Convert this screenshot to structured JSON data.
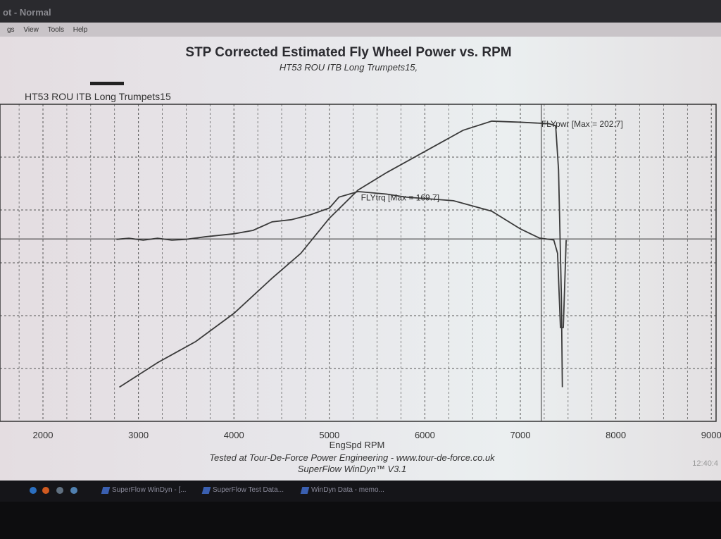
{
  "window": {
    "title": "ot - Normal",
    "menu": [
      "gs",
      "View",
      "Tools",
      "Help"
    ]
  },
  "chart_data": {
    "type": "line",
    "title": "STP Corrected Estimated Fly Wheel Power vs. RPM",
    "subtitle": "HT53 ROU ITB Long Trumpets15,",
    "legend": "HT53 ROU ITB Long Trumpets15",
    "legend_placement": "top-left",
    "xlabel": "EngSpd RPM",
    "ylabel": "",
    "xlim": [
      1550,
      9050
    ],
    "ylim": [
      62,
      210.6
    ],
    "xticks": [
      2000,
      3000,
      4000,
      5000,
      6000,
      7000,
      8000,
      9000
    ],
    "grid": true,
    "cursor_rpm": 7220,
    "series": [
      {
        "name": "FLYpwr",
        "annotation": "FLYpwr [Max = 202.7]",
        "annotation_at": [
          7220,
          200
        ],
        "x": [
          2800,
          3200,
          3600,
          4000,
          4400,
          4700,
          5000,
          5300,
          5600,
          6000,
          6400,
          6700,
          7000,
          7300,
          7370,
          7400,
          7430,
          7440
        ],
        "y": [
          78,
          89.5,
          99.4,
          112.6,
          129.1,
          140.7,
          157.2,
          170.4,
          178.6,
          188.5,
          198.4,
          202.7,
          202.2,
          201.5,
          200.5,
          180,
          120,
          78
        ]
      },
      {
        "name": "FLYtrq",
        "annotation": "FLYtrq [Max = 169.7]",
        "annotation_at": [
          5330,
          165.5
        ],
        "x": [
          2770,
          2900,
          3050,
          3200,
          3350,
          3500,
          3700,
          4000,
          4200,
          4400,
          4600,
          4800,
          5000,
          5100,
          5300,
          5600,
          5800,
          6300,
          6700,
          7000,
          7200,
          7350,
          7390,
          7420,
          7450,
          7480
        ],
        "y": [
          147.3,
          147.8,
          146.9,
          147.8,
          146.9,
          147.3,
          148.5,
          149.9,
          151.5,
          155.5,
          156.5,
          158.8,
          162,
          167.1,
          169.7,
          168.5,
          167.1,
          165.4,
          160.5,
          152.2,
          147.9,
          147,
          140.7,
          106,
          106,
          147
        ]
      }
    ],
    "colors": {
      "line": "#3a3a3a",
      "grid": "#555555"
    }
  },
  "footer": {
    "line1": "Tested at Tour-De-Force Power Engineering - www.tour-de-force.co.uk",
    "line2": "SuperFlow WinDyn™ V3.1",
    "clock": "12:40:4"
  },
  "taskbar": {
    "items": [
      "SuperFlow WinDyn - [...",
      "SuperFlow Test Data...",
      "WinDyn Data - memo..."
    ]
  }
}
